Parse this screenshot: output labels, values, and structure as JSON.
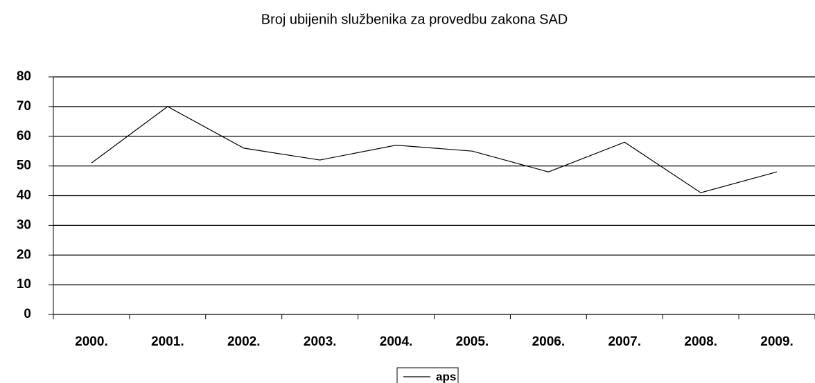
{
  "chart_data": {
    "type": "line",
    "title": "Broj ubijenih službenika za provedbu zakona SAD",
    "categories": [
      "2000.",
      "2001.",
      "2002.",
      "2003.",
      "2004.",
      "2005.",
      "2006.",
      "2007.",
      "2008.",
      "2009."
    ],
    "series": [
      {
        "name": "aps",
        "color": "#000000",
        "values": [
          51,
          70,
          56,
          52,
          57,
          55,
          48,
          58,
          41,
          48
        ]
      }
    ],
    "ylim": [
      0,
      80
    ],
    "yticks": [
      0,
      10,
      20,
      30,
      40,
      50,
      60,
      70,
      80
    ],
    "grid": true,
    "legend": "bottom"
  }
}
